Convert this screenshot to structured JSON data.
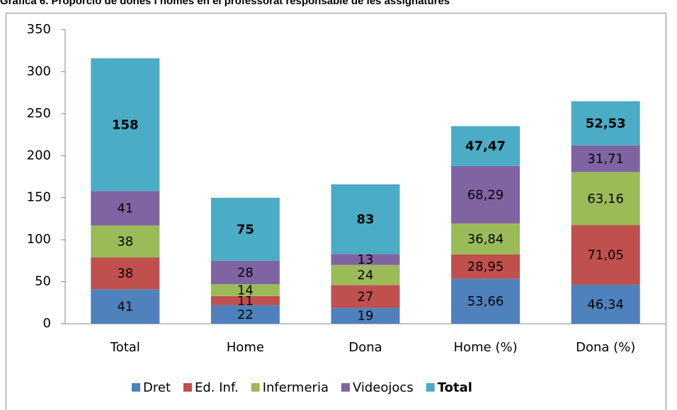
{
  "chart_data": {
    "type": "stacked_bar",
    "title": "Gràfica 6. Proporció de dones i homes en el professorat responsable de les assignatures",
    "categories": [
      "Total",
      "Home",
      "Dona",
      "Home (%)",
      "Dona (%)"
    ],
    "series": [
      {
        "name": "Dret",
        "color": "#4f81bd",
        "values": [
          41,
          22,
          19,
          53.66,
          46.34
        ],
        "value_labels": [
          "41",
          "22",
          "19",
          "53,66",
          "46,34"
        ]
      },
      {
        "name": "Ed. Inf.",
        "color": "#c0504d",
        "values": [
          38,
          11,
          27,
          28.95,
          71.05
        ],
        "value_labels": [
          "38",
          "11",
          "27",
          "28,95",
          "71,05"
        ]
      },
      {
        "name": "Infermeria",
        "color": "#9bbb59",
        "values": [
          38,
          14,
          24,
          36.84,
          63.16
        ],
        "value_labels": [
          "38",
          "14",
          "24",
          "36,84",
          "63,16"
        ]
      },
      {
        "name": "Videojocs",
        "color": "#8064a2",
        "values": [
          41,
          28,
          13,
          68.29,
          31.71
        ],
        "value_labels": [
          "41",
          "28",
          "13",
          "68,29",
          "31,71"
        ]
      },
      {
        "name": "Total",
        "color": "#4bacc6",
        "bold": true,
        "values": [
          158,
          75,
          83,
          47.47,
          52.53
        ],
        "value_labels": [
          "158",
          "75",
          "83",
          "47,47",
          "52,53"
        ]
      }
    ],
    "ylim": [
      0,
      350
    ],
    "yticks": [
      0,
      50,
      100,
      150,
      200,
      250,
      300,
      350
    ],
    "grid": false,
    "legend": "bottom"
  }
}
